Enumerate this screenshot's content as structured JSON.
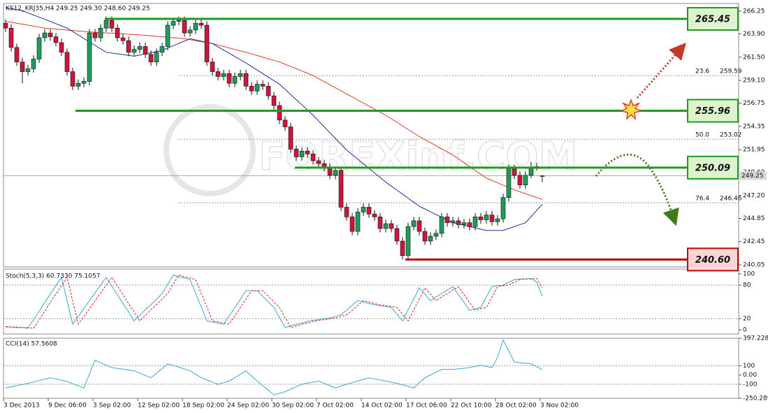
{
  "chart_data": [
    {
      "type": "candlestick",
      "title": "KS12_KRJ35,H4  249.25 249.30 248.60 249.25",
      "watermark": "FOREXinf.COM",
      "categories": [
        "3 Dec 2013",
        null,
        null,
        null,
        null,
        null,
        null,
        null,
        "9 Dec 06:00",
        null,
        null,
        null,
        null,
        null,
        null,
        null,
        "3 Sep 02:00",
        null,
        null,
        null,
        null,
        null,
        null,
        null,
        "12 Sep 02:00",
        null,
        null,
        null,
        null,
        null,
        null,
        null,
        "18 Sep 02:00",
        null,
        null,
        null,
        null,
        null,
        null,
        null,
        "24 Sep 02:00",
        null,
        null,
        null,
        null,
        null,
        null,
        null,
        "30 Sep 02:00",
        null,
        null,
        null,
        null,
        null,
        null,
        null,
        "7 Oct 02:00",
        null,
        null,
        null,
        null,
        null,
        null,
        null,
        "14 Oct 02:00",
        null,
        null,
        null,
        null,
        null,
        null,
        null,
        "17 Oct 06:00",
        null,
        null,
        null,
        null,
        null,
        null,
        null,
        "22 Oct 10:00",
        null,
        null,
        null,
        null,
        null,
        null,
        null,
        "28 Oct 02:00",
        null,
        null,
        null,
        null,
        null,
        null,
        null,
        "3 Nov 02:00"
      ],
      "open": [
        265.0,
        264.5,
        262.5,
        261.0,
        260.0,
        260.3,
        261.3,
        263.5,
        264.0,
        263.6,
        263.0,
        262.0,
        260.0,
        258.5,
        258.8,
        259.0,
        264.0,
        263.5,
        264.5,
        265.3,
        264.5,
        263.5,
        263.2,
        262.0,
        262.3,
        262.6,
        261.8,
        261.0,
        262.0,
        262.6,
        264.8,
        265.2,
        265.3,
        264.0,
        264.3,
        265.0,
        264.8,
        261.0,
        260.0,
        259.5,
        259.8,
        258.8,
        259.5,
        259.8,
        258.5,
        258.0,
        258.7,
        258.5,
        257.5,
        256.5,
        255.0,
        254.3,
        252.0,
        251.2,
        251.8,
        251.5,
        250.8,
        250.5,
        250.1,
        249.3,
        249.8,
        246.0,
        245.0,
        243.5,
        245.5,
        246.0,
        245.3,
        245.0,
        243.8,
        244.3,
        243.8,
        242.5,
        241.0,
        244.0,
        244.6,
        243.5,
        242.5,
        243.0,
        243.3,
        245.0,
        244.4,
        244.6,
        244.2,
        244.4,
        244.0,
        245.0,
        244.7,
        245.2,
        244.5,
        244.8,
        247.0,
        250.0,
        249.3,
        248.3,
        249.3,
        250.0,
        249.25
      ],
      "high": [
        265.4,
        264.9,
        262.9,
        261.4,
        260.7,
        261.7,
        263.9,
        264.4,
        264.4,
        264.0,
        263.4,
        262.4,
        260.4,
        259.2,
        259.4,
        264.4,
        264.4,
        264.9,
        265.7,
        265.7,
        264.9,
        263.9,
        263.6,
        262.7,
        263.0,
        263.0,
        262.2,
        262.4,
        263.0,
        265.2,
        265.6,
        265.7,
        265.7,
        264.7,
        265.4,
        265.4,
        265.2,
        261.4,
        260.4,
        260.2,
        260.2,
        259.9,
        260.2,
        260.2,
        258.9,
        259.1,
        259.1,
        258.9,
        257.9,
        256.9,
        255.4,
        254.7,
        252.4,
        252.2,
        252.2,
        251.9,
        251.2,
        250.9,
        250.5,
        250.2,
        250.2,
        246.4,
        245.4,
        245.9,
        246.4,
        246.4,
        245.7,
        245.4,
        244.7,
        244.7,
        244.2,
        242.9,
        244.4,
        245.0,
        245.0,
        243.9,
        243.4,
        243.7,
        245.4,
        245.4,
        245.0,
        245.0,
        244.8,
        244.8,
        245.4,
        245.4,
        245.6,
        245.6,
        245.2,
        247.4,
        250.4,
        250.4,
        249.7,
        249.7,
        250.7,
        250.6,
        249.3
      ],
      "low": [
        264.1,
        262.1,
        260.6,
        258.8,
        259.6,
        259.9,
        260.9,
        263.1,
        263.2,
        262.6,
        261.6,
        259.6,
        258.1,
        258.1,
        258.4,
        258.6,
        263.1,
        263.1,
        264.1,
        264.1,
        263.1,
        262.8,
        261.6,
        261.6,
        261.9,
        261.4,
        260.6,
        260.6,
        261.6,
        262.2,
        264.4,
        264.8,
        263.6,
        263.6,
        263.9,
        264.4,
        260.6,
        259.6,
        259.1,
        259.1,
        258.4,
        258.4,
        259.1,
        258.1,
        257.6,
        257.6,
        258.1,
        257.1,
        256.1,
        254.6,
        253.9,
        251.6,
        250.8,
        250.8,
        251.1,
        250.4,
        250.1,
        249.7,
        248.9,
        248.9,
        245.6,
        244.6,
        243.1,
        243.1,
        245.1,
        244.9,
        244.6,
        243.4,
        243.4,
        243.4,
        242.1,
        240.6,
        240.6,
        243.6,
        243.1,
        242.1,
        242.1,
        242.6,
        242.9,
        244.0,
        244.0,
        243.8,
        243.8,
        243.6,
        243.6,
        244.3,
        244.3,
        244.1,
        244.1,
        244.4,
        246.6,
        248.9,
        247.9,
        247.9,
        249.0,
        249.8,
        248.6
      ],
      "close": [
        264.5,
        262.5,
        261.0,
        260.0,
        260.3,
        261.3,
        263.5,
        264.0,
        263.6,
        263.0,
        262.0,
        260.0,
        258.5,
        258.8,
        259.0,
        264.0,
        263.5,
        264.5,
        265.3,
        264.5,
        263.5,
        263.2,
        262.0,
        262.3,
        262.6,
        261.8,
        261.0,
        262.0,
        262.6,
        264.8,
        265.2,
        265.3,
        264.0,
        264.3,
        265.0,
        264.8,
        261.0,
        260.0,
        259.5,
        259.8,
        258.8,
        259.5,
        259.8,
        258.5,
        258.0,
        258.7,
        258.5,
        257.5,
        256.5,
        255.0,
        254.3,
        252.0,
        251.2,
        251.8,
        251.5,
        250.8,
        250.5,
        250.1,
        249.3,
        249.8,
        246.0,
        245.0,
        243.5,
        245.5,
        246.0,
        245.3,
        245.0,
        243.8,
        244.3,
        243.8,
        242.5,
        241.0,
        244.0,
        244.6,
        243.5,
        242.5,
        243.0,
        243.3,
        245.0,
        244.4,
        244.6,
        244.2,
        244.4,
        244.0,
        245.0,
        244.7,
        245.2,
        244.5,
        244.8,
        247.0,
        250.0,
        249.3,
        248.3,
        249.3,
        250.0,
        250.2,
        249.25
      ],
      "up_color": "#1f9c5a",
      "down_color": "#d0143c",
      "series": [
        {
          "color": "#e03a2a",
          "values": [
            265.2,
            265.1,
            265.0,
            264.9,
            264.8,
            264.7,
            264.6,
            264.5,
            264.45,
            264.4,
            264.35,
            264.3,
            264.25,
            264.2,
            264.15,
            264.1,
            264.07,
            264.03,
            264.0,
            263.97,
            263.93,
            263.9,
            263.87,
            263.83,
            263.8,
            263.75,
            263.7,
            263.65,
            263.6,
            263.55,
            263.5,
            263.45,
            263.4,
            263.3,
            263.2,
            263.1,
            263.0,
            262.9,
            262.75,
            262.6,
            262.45,
            262.3,
            262.15,
            262.0,
            261.83,
            261.67,
            261.5,
            261.33,
            261.17,
            261.0,
            260.77,
            260.53,
            260.3,
            260.07,
            259.83,
            259.6,
            259.28,
            258.97,
            258.65,
            258.33,
            258.02,
            257.7,
            257.39,
            257.07,
            256.76,
            256.44,
            256.13,
            255.81,
            255.5,
            255.13,
            254.77,
            254.4,
            254.03,
            253.67,
            253.3,
            252.98,
            252.67,
            252.35,
            252.03,
            251.72,
            251.4,
            251.0,
            250.6,
            250.2,
            249.8,
            249.4,
            249.0,
            248.76,
            248.52,
            248.28,
            248.04,
            247.8,
            247.6,
            247.4,
            247.2,
            247.0,
            246.8
          ]
        },
        {
          "color": "#1c2f9a",
          "values": [
            266.6,
            266.5,
            266.4,
            266.3,
            266.08,
            265.85,
            265.63,
            265.4,
            265.18,
            264.95,
            264.73,
            264.5,
            264.14,
            263.79,
            263.43,
            263.07,
            262.71,
            262.36,
            262.0,
            261.92,
            261.84,
            261.76,
            261.68,
            261.6,
            261.72,
            261.84,
            261.96,
            262.08,
            262.2,
            262.44,
            262.68,
            262.92,
            263.16,
            263.4,
            263.28,
            263.15,
            263.03,
            262.9,
            262.57,
            262.23,
            261.9,
            261.57,
            261.23,
            260.9,
            260.53,
            260.17,
            259.8,
            259.43,
            259.07,
            258.7,
            258.17,
            257.63,
            257.1,
            256.57,
            256.03,
            255.5,
            254.9,
            254.3,
            253.7,
            253.1,
            252.5,
            251.9,
            251.43,
            250.96,
            250.49,
            250.01,
            249.54,
            249.07,
            248.6,
            248.18,
            247.77,
            247.35,
            246.93,
            246.52,
            246.1,
            245.82,
            245.53,
            245.25,
            244.97,
            244.68,
            244.4,
            244.27,
            244.13,
            244.0,
            243.87,
            243.73,
            243.6,
            243.6,
            243.6,
            243.6,
            243.8,
            244.0,
            244.2,
            244.4,
            245.03,
            245.67,
            246.3
          ]
        }
      ],
      "levels": [
        {
          "value": 265.45,
          "color": "#1e9b1e",
          "text_color": "#2b6e12",
          "fill": "#dcf3cc"
        },
        {
          "value": 255.96,
          "color": "#1e9b1e",
          "text_color": "#2b6e12",
          "fill": "#dcf3cc"
        },
        {
          "value": 250.09,
          "color": "#1e9b1e",
          "text_color": "#2b6e12",
          "fill": "#dcf3cc"
        },
        {
          "value": 240.6,
          "label": "240.60",
          "color": "#c40000",
          "text_color": "#c40000",
          "fill": "#fbd6d6"
        }
      ],
      "fib": [
        {
          "ratio": "23.6",
          "value": 259.59
        },
        {
          "ratio": "50.0",
          "value": 253.02
        },
        {
          "ratio": "76.4",
          "value": 246.46
        }
      ],
      "ylim": [
        239.83,
        267.04
      ],
      "yticks": [
        266.25,
        {
          "value": 263.9,
          "label": "263.90"
        },
        {
          "value": 261.5,
          "label": "261.50"
        },
        {
          "value": 259.1,
          "label": "259.10"
        },
        256.75,
        254.35,
        251.95,
        {
          "value": 249.6,
          "label": "249.60"
        },
        {
          "value": 247.2,
          "label": "247.20"
        },
        244.85,
        242.45,
        240.05
      ]
    },
    {
      "type": "line",
      "title": "Stoch(5,3,3) 60.7330 75.1057",
      "ylim": [
        -7.5,
        108.75
      ],
      "yticks": [
        100,
        80,
        20,
        0
      ],
      "levels": [
        80,
        20
      ],
      "series": [
        {
          "color": "#3aa8cf",
          "values": [
            5,
            5,
            4,
            4,
            3,
            18,
            33,
            49,
            64,
            79,
            94,
            52,
            10,
            24,
            38,
            52,
            66,
            80,
            94,
            78,
            63,
            47,
            32,
            16,
            26,
            36,
            45,
            55,
            65,
            82,
            98,
            95,
            93,
            90,
            65,
            41,
            16,
            14,
            12,
            10,
            25,
            40,
            55,
            70,
            70,
            70,
            60,
            50,
            40,
            22,
            4,
            7,
            10,
            12,
            15,
            17,
            18,
            20,
            21,
            24,
            27,
            35,
            44,
            52,
            50,
            47,
            45,
            43,
            42,
            40,
            28,
            16,
            36,
            55,
            75,
            64,
            52,
            59,
            65,
            71,
            77,
            63,
            49,
            35,
            38,
            40,
            59,
            77,
            79,
            80,
            85,
            90,
            91,
            91,
            92,
            85,
            60.733
          ]
        },
        {
          "color": "#e02020",
          "dashed": true,
          "values": [
            6,
            5,
            5,
            4,
            4,
            3,
            18,
            33,
            49,
            64,
            79,
            94,
            52,
            10,
            24,
            38,
            52,
            66,
            80,
            94,
            78,
            63,
            47,
            32,
            16,
            26,
            36,
            45,
            55,
            65,
            82,
            98,
            95,
            93,
            90,
            65,
            41,
            16,
            14,
            12,
            10,
            25,
            40,
            55,
            70,
            70,
            70,
            60,
            50,
            40,
            22,
            4,
            7,
            10,
            12,
            15,
            17,
            18,
            20,
            21,
            24,
            27,
            35,
            44,
            52,
            50,
            47,
            45,
            43,
            42,
            40,
            28,
            16,
            36,
            55,
            75,
            64,
            52,
            59,
            65,
            71,
            77,
            63,
            49,
            35,
            38,
            40,
            59,
            77,
            79,
            80,
            85,
            90,
            91,
            91,
            92,
            75.1057
          ]
        }
      ]
    },
    {
      "type": "line",
      "title": "CCI(14) 57.5608",
      "ylim": [
        -252,
        397.2282
      ],
      "yticks": [
        397.2282,
        100,
        {
          "value": 0,
          "label": "0.00"
        },
        -100,
        -250.289
      ],
      "levels": [
        100,
        -100
      ],
      "series": [
        {
          "color": "#3aa8cf",
          "values": [
            -140,
            -128,
            -115,
            -103,
            -90,
            -75,
            -60,
            -45,
            -30,
            -43,
            -57,
            -70,
            -93,
            -117,
            -140,
            10,
            160,
            133,
            107,
            80,
            71,
            63,
            54,
            45,
            20,
            -5,
            -30,
            20,
            70,
            120,
            105,
            85,
            65,
            45,
            8,
            -30,
            -53,
            -77,
            -100,
            -83,
            -65,
            -28,
            8,
            45,
            -10,
            -65,
            -115,
            -165,
            -215,
            -198,
            -180,
            -153,
            -127,
            -100,
            -88,
            -77,
            -65,
            -90,
            -115,
            -140,
            -120,
            -100,
            -83,
            -65,
            -48,
            -30,
            -42,
            -53,
            -65,
            -78,
            -90,
            -107,
            -123,
            -140,
            -85,
            -30,
            0,
            30,
            60,
            60,
            60,
            67,
            73,
            80,
            93,
            105,
            93,
            80,
            190,
            380,
            260,
            140,
            133,
            127,
            120,
            89,
            57.5608
          ]
        }
      ]
    }
  ]
}
